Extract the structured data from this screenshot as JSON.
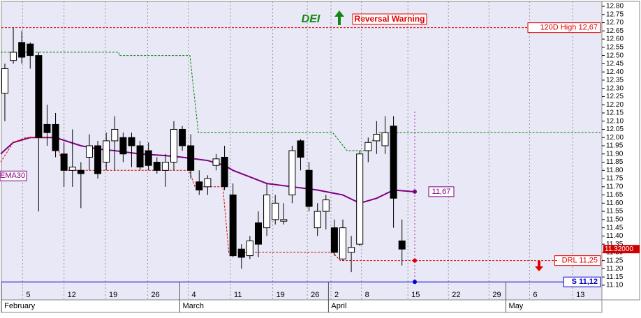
{
  "chart_data": {
    "type": "candlestick",
    "title": "DEI",
    "annotations": [
      "Reversal Warning"
    ],
    "x": [
      0,
      1,
      2,
      3,
      4,
      5,
      6,
      7,
      8,
      9,
      10,
      11,
      12,
      13,
      14,
      15,
      16,
      17,
      18,
      19,
      20,
      21,
      22,
      23,
      24,
      25,
      26,
      27,
      28,
      29,
      30,
      31,
      32,
      33,
      34,
      35,
      36,
      37,
      38,
      39,
      40,
      41,
      42,
      43,
      44,
      45,
      46,
      47
    ],
    "open": [
      12.27,
      12.47,
      12.58,
      12.57,
      12.5,
      12.08,
      12.08,
      11.9,
      11.8,
      11.8,
      11.88,
      11.95,
      11.85,
      11.98,
      12.0,
      12.0,
      11.95,
      11.92,
      11.85,
      11.8,
      11.85,
      12.05,
      11.95,
      11.73,
      11.7,
      11.83,
      11.88,
      11.65,
      11.32,
      11.28,
      11.48,
      11.45,
      11.5,
      11.49,
      11.65,
      11.98,
      11.8,
      11.45,
      11.55,
      11.45,
      11.26,
      11.3,
      11.35,
      11.92,
      11.98,
      11.95,
      12.07,
      11.37
    ],
    "close": [
      12.42,
      12.52,
      12.49,
      12.5,
      12.0,
      12.03,
      11.92,
      11.8,
      11.82,
      11.78,
      11.95,
      11.78,
      11.98,
      12.05,
      11.9,
      11.95,
      11.82,
      11.83,
      11.8,
      11.85,
      12.05,
      11.95,
      11.8,
      11.68,
      11.75,
      11.87,
      11.7,
      11.28,
      11.27,
      11.37,
      11.35,
      11.65,
      11.6,
      11.5,
      11.92,
      11.88,
      11.58,
      11.55,
      11.62,
      11.3,
      11.45,
      11.33,
      11.9,
      11.97,
      12.02,
      12.03,
      11.63,
      11.32
    ],
    "high": [
      12.45,
      12.67,
      12.65,
      12.58,
      12.52,
      12.2,
      12.15,
      11.97,
      12.05,
      11.85,
      12.02,
      11.98,
      12.03,
      12.13,
      12.03,
      12.03,
      11.98,
      11.97,
      11.88,
      11.9,
      12.1,
      12.07,
      12.02,
      11.8,
      11.77,
      11.9,
      11.95,
      11.72,
      11.35,
      11.4,
      11.55,
      11.72,
      11.65,
      11.6,
      11.95,
      11.99,
      11.85,
      11.6,
      11.65,
      11.5,
      11.5,
      11.4,
      11.92,
      12.0,
      12.1,
      12.13,
      12.13,
      11.5
    ],
    "low": [
      12.1,
      12.45,
      12.45,
      12.42,
      11.55,
      11.95,
      11.88,
      11.7,
      11.7,
      11.57,
      11.8,
      11.75,
      11.8,
      11.8,
      11.85,
      11.82,
      11.8,
      11.8,
      11.78,
      11.7,
      11.8,
      11.92,
      11.75,
      11.65,
      11.65,
      11.8,
      11.68,
      11.27,
      11.2,
      11.26,
      11.27,
      11.4,
      11.47,
      11.47,
      11.6,
      11.8,
      11.55,
      11.4,
      11.44,
      11.28,
      11.25,
      11.18,
      11.34,
      11.85,
      11.9,
      11.9,
      11.45,
      11.22
    ],
    "lines": [
      {
        "name": "EMA30",
        "color": "#800080",
        "style": "solid",
        "x": [
          -0.5,
          1,
          3,
          6,
          9,
          11,
          13,
          16,
          19,
          21,
          24,
          26,
          27,
          29,
          31,
          34,
          37,
          40,
          42,
          44,
          46,
          48.4
        ],
        "values": [
          11.9,
          11.97,
          12.0,
          12.0,
          11.95,
          11.93,
          11.92,
          11.9,
          11.89,
          11.88,
          11.86,
          11.83,
          11.8,
          11.76,
          11.72,
          11.7,
          11.68,
          11.65,
          11.6,
          11.63,
          11.68,
          11.67
        ]
      },
      {
        "color": "#008000",
        "style": "dashed",
        "x": [
          -0.5,
          13.5,
          13.5,
          21.9,
          22.9,
          38.8,
          40.5,
          42.5,
          44.3,
          70.5
        ],
        "values": [
          12.52,
          12.52,
          12.5,
          12.5,
          12.03,
          12.03,
          11.92,
          11.92,
          12.03,
          12.03
        ]
      },
      {
        "color": "#e00000",
        "style": "dashed",
        "x": [
          -0.5,
          1,
          2.5,
          6,
          7,
          21.8,
          22.5,
          25.8,
          26.5,
          38.8,
          39.7,
          65.5
        ],
        "values": [
          11.85,
          11.97,
          12.0,
          12.0,
          11.8,
          11.8,
          11.7,
          11.7,
          11.3,
          11.3,
          11.25,
          11.25
        ]
      }
    ],
    "levels": [
      {
        "label": "120D High 12,67",
        "value": 12.67,
        "color": "#e00000"
      },
      {
        "label": "DRL 11,25",
        "value": 11.25,
        "color": "#e00000"
      },
      {
        "label": "S 11,12",
        "value": 11.12,
        "color": "#0000cc"
      }
    ],
    "markers": [
      {
        "label": "11,67",
        "value": 11.67,
        "color": "#800080"
      },
      {
        "value": 11.25,
        "color": "#e00000"
      },
      {
        "value": 11.12,
        "color": "#0000cc"
      }
    ],
    "last_price": {
      "value": 11.32,
      "label": "11.32000"
    },
    "xlim": [
      -0.41,
      70.66
    ],
    "xticks": [
      {
        "value": 2.1,
        "label": "5"
      },
      {
        "value": 7,
        "label": "12"
      },
      {
        "value": 11.9,
        "label": "19"
      },
      {
        "value": 16.9,
        "label": "26"
      },
      {
        "value": 21.7,
        "label": "4"
      },
      {
        "value": 26.7,
        "label": "11"
      },
      {
        "value": 31.7,
        "label": "19"
      },
      {
        "value": 35.8,
        "label": "26"
      },
      {
        "value": 38.6,
        "label": "2"
      },
      {
        "value": 42.2,
        "label": "8"
      },
      {
        "value": 47.7,
        "label": "15"
      },
      {
        "value": 52.5,
        "label": "22"
      },
      {
        "value": 57.3,
        "label": "29"
      },
      {
        "value": 62.1,
        "label": "6"
      },
      {
        "value": 67.2,
        "label": "13"
      }
    ],
    "months": [
      {
        "value": -0.4,
        "label": "February"
      },
      {
        "value": 20.7,
        "label": "March"
      },
      {
        "value": 38.3,
        "label": "April"
      },
      {
        "value": 59.3,
        "label": "May"
      }
    ],
    "ylim": [
      11.07,
      12.83
    ],
    "yticks": [
      {
        "value": 12.8,
        "label": "12.80"
      },
      12.75,
      {
        "value": 12.7,
        "label": "12.70"
      },
      12.65,
      {
        "value": 12.6,
        "label": "12.60"
      },
      12.55,
      {
        "value": 12.5,
        "label": "12.50"
      },
      12.45,
      {
        "value": 12.4,
        "label": "12.40"
      },
      12.35,
      {
        "value": 12.3,
        "label": "12.30"
      },
      12.25,
      {
        "value": 12.2,
        "label": "12.20"
      },
      12.15,
      {
        "value": 12.1,
        "label": "12.10"
      },
      12.05,
      {
        "value": 12,
        "label": "12.00"
      },
      11.95,
      {
        "value": 11.9,
        "label": "11.90"
      },
      11.85,
      {
        "value": 11.8,
        "label": "11.80"
      },
      11.75,
      {
        "value": 11.7,
        "label": "11.70"
      },
      11.65,
      {
        "value": 11.6,
        "label": "11.60"
      },
      11.55,
      {
        "value": 11.5,
        "label": "11.50"
      },
      11.45,
      {
        "value": 11.4,
        "label": "11.40"
      },
      11.35,
      {
        "value": 11.3,
        "label": "11.30"
      },
      11.25,
      {
        "value": 11.2,
        "label": "11.20"
      },
      11.15,
      {
        "value": 11.1,
        "label": "11.10"
      }
    ],
    "grid": true
  }
}
